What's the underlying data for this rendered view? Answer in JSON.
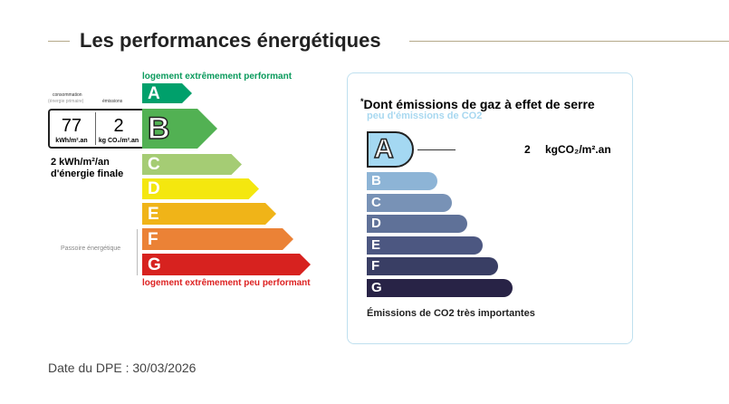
{
  "title": "Les performances énergétiques",
  "energy": {
    "top_label": "logement extrêmement performant",
    "bottom_label": "logement extrêmement peu performant",
    "consumption_label": "consommation",
    "consumption_sub": "(énergie primaire)",
    "emissions_label": "émissions",
    "consumption_value": "77",
    "consumption_unit": "kWh/m².an",
    "emissions_value": "2",
    "emissions_unit": "kg CO₂/m².an",
    "final_energy": "2 kWh/m²/an",
    "final_energy_2": "d'énergie finale",
    "passoire": "Passoire énergétique",
    "current": "B",
    "classes": [
      {
        "letter": "A",
        "color": "#00a06b"
      },
      {
        "letter": "B",
        "color": "#52b153"
      },
      {
        "letter": "C",
        "color": "#a5cc74"
      },
      {
        "letter": "D",
        "color": "#f4e70f"
      },
      {
        "letter": "E",
        "color": "#f0b418"
      },
      {
        "letter": "F",
        "color": "#eb8236"
      },
      {
        "letter": "G",
        "color": "#d7221f"
      }
    ]
  },
  "ges": {
    "heading": "Dont émissions de gaz à effet de serre",
    "heading_mark": "*",
    "top_label": "peu d'émissions de CO2",
    "bottom_label": "Émissions de CO2 très importantes",
    "value": "2",
    "unit": "kgCO₂/m².an",
    "current": "A",
    "classes": [
      {
        "letter": "A",
        "color": "#a4d8f2"
      },
      {
        "letter": "B",
        "color": "#8db4d6"
      },
      {
        "letter": "C",
        "color": "#7892b6"
      },
      {
        "letter": "D",
        "color": "#5f7198"
      },
      {
        "letter": "E",
        "color": "#4c5781"
      },
      {
        "letter": "F",
        "color": "#393e64"
      },
      {
        "letter": "G",
        "color": "#282346"
      }
    ]
  },
  "date": "Date du DPE : 30/03/2026"
}
